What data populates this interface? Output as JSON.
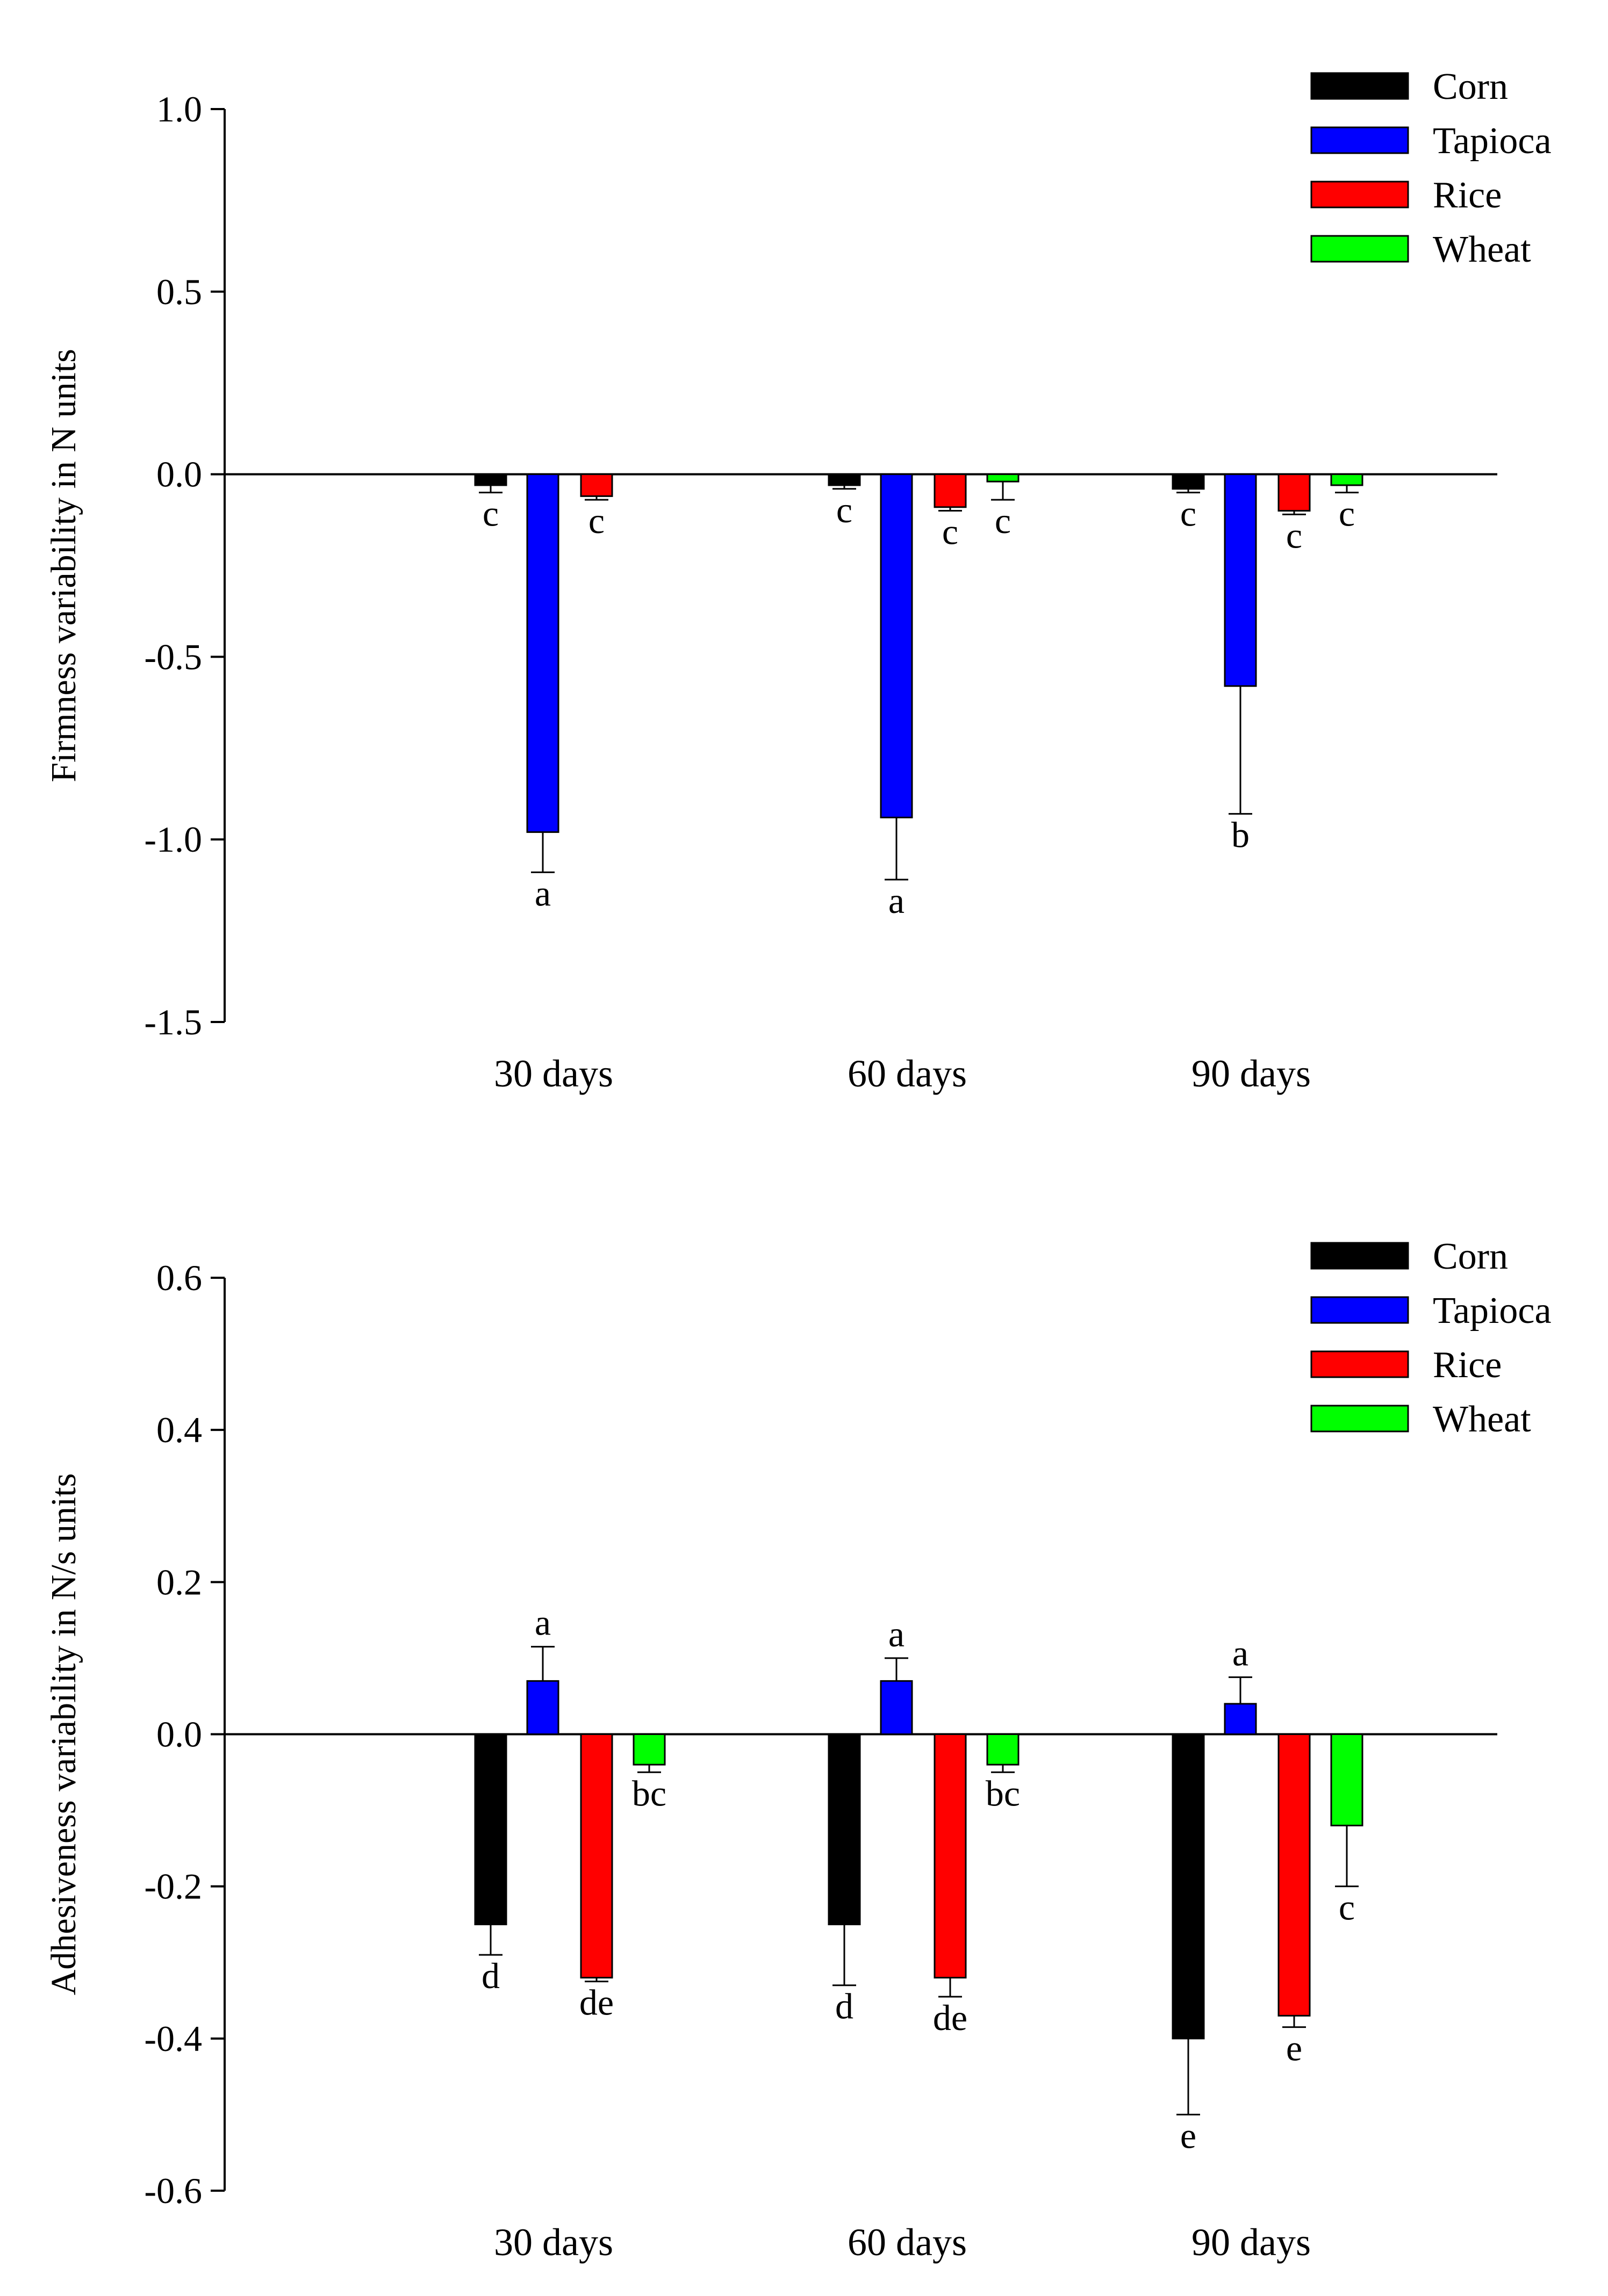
{
  "chart_data": [
    {
      "type": "bar",
      "ylabel": "Firmness variability in N units",
      "ylim": [
        -1.5,
        1.0
      ],
      "yticks": [
        1.0,
        0.5,
        0.0,
        -0.5,
        -1.0,
        -1.5
      ],
      "ytick_labels": [
        "1.0",
        "0.5",
        "0.0",
        "-0.5",
        "-1.0",
        "-1.5"
      ],
      "categories": [
        "30 days",
        "60 days",
        "90 days"
      ],
      "legend": "top-right",
      "series": [
        {
          "name": "Corn",
          "color": "#000000",
          "values": [
            -0.03,
            -0.03,
            -0.04
          ],
          "errors": [
            0.02,
            0.01,
            0.01
          ],
          "letters": [
            "c",
            "c",
            "c"
          ]
        },
        {
          "name": "Tapioca",
          "color": "#0000ff",
          "values": [
            -0.98,
            -0.94,
            -0.58
          ],
          "errors": [
            0.11,
            0.17,
            0.35
          ],
          "letters": [
            "a",
            "a",
            "b"
          ]
        },
        {
          "name": "Rice",
          "color": "#ff0000",
          "values": [
            -0.06,
            -0.09,
            -0.1
          ],
          "errors": [
            0.01,
            0.01,
            0.01
          ],
          "letters": [
            "c",
            "c",
            "c"
          ]
        },
        {
          "name": "Wheat",
          "color": "#00ff00",
          "values": [
            0.0,
            -0.02,
            -0.03
          ],
          "errors": [
            0.0,
            0.05,
            0.02
          ],
          "letters": [
            "",
            "c",
            "c"
          ]
        }
      ]
    },
    {
      "type": "bar",
      "ylabel": "Adhesiveness variability in N/s units",
      "ylim": [
        -0.6,
        0.6
      ],
      "yticks": [
        0.6,
        0.4,
        0.2,
        0.0,
        -0.2,
        -0.4,
        -0.6
      ],
      "ytick_labels": [
        "0.6",
        "0.4",
        "0.2",
        "0.0",
        "-0.2",
        "-0.4",
        "-0.6"
      ],
      "categories": [
        "30 days",
        "60 days",
        "90 days"
      ],
      "legend": "top-right",
      "series": [
        {
          "name": "Corn",
          "color": "#000000",
          "values": [
            -0.25,
            -0.25,
            -0.4
          ],
          "errors": [
            0.04,
            0.08,
            0.1
          ],
          "letters": [
            "d",
            "d",
            "e"
          ]
        },
        {
          "name": "Tapioca",
          "color": "#0000ff",
          "values": [
            0.07,
            0.07,
            0.04
          ],
          "errors": [
            0.045,
            0.03,
            0.035
          ],
          "letters": [
            "a",
            "a",
            "a"
          ]
        },
        {
          "name": "Rice",
          "color": "#ff0000",
          "values": [
            -0.32,
            -0.32,
            -0.37
          ],
          "errors": [
            0.005,
            0.025,
            0.015
          ],
          "letters": [
            "de",
            "de",
            "e"
          ]
        },
        {
          "name": "Wheat",
          "color": "#00ff00",
          "values": [
            -0.04,
            -0.04,
            -0.12
          ],
          "errors": [
            0.01,
            0.01,
            0.08
          ],
          "letters": [
            "bc",
            "bc",
            "c"
          ]
        }
      ]
    }
  ]
}
